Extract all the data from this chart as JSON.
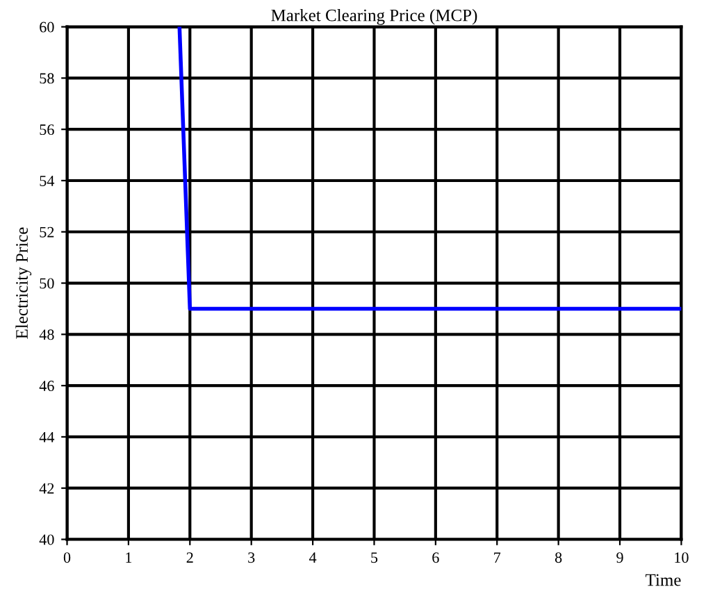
{
  "chart_data": {
    "type": "line",
    "title": "Market Clearing Price (MCP)",
    "xlabel": "Time",
    "ylabel": "Electricity Price",
    "series": [
      {
        "color": "#0000ff",
        "x": [
          1.83,
          2,
          10
        ],
        "values": [
          60,
          49,
          49
        ]
      }
    ],
    "xlim": [
      0,
      10
    ],
    "xticks": [
      0,
      1,
      2,
      3,
      4,
      5,
      6,
      7,
      8,
      9,
      10
    ],
    "ylim": [
      40,
      60
    ],
    "yticks": [
      40,
      42,
      44,
      46,
      48,
      50,
      52,
      54,
      56,
      58,
      60
    ],
    "grid": true,
    "line_style": "solid"
  }
}
